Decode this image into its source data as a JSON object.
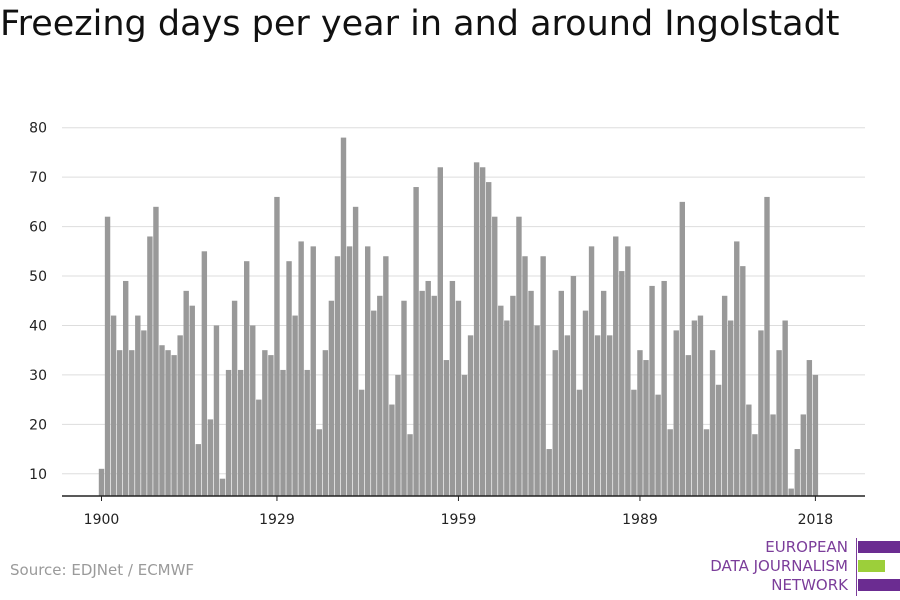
{
  "title": "Freezing days per year in and around Ingolstadt",
  "source": "Source: EDJNet / ECMWF",
  "logo": {
    "lines": [
      "EUROPEAN",
      "DATA JOURNALISM",
      "NETWORK"
    ],
    "colors": [
      "#6b2c91",
      "#9ccf3a",
      "#6b2c91"
    ]
  },
  "colors": {
    "bar": "#999999",
    "grid": "#dddddd",
    "axis": "#222222"
  },
  "chart_data": {
    "type": "bar",
    "title": "Freezing days per year in and around Ingolstadt",
    "xlabel": "",
    "ylabel": "",
    "x": [
      1900,
      1901,
      1902,
      1903,
      1904,
      1905,
      1906,
      1907,
      1908,
      1909,
      1910,
      1911,
      1912,
      1913,
      1914,
      1915,
      1916,
      1917,
      1918,
      1919,
      1920,
      1921,
      1922,
      1923,
      1924,
      1925,
      1926,
      1927,
      1928,
      1929,
      1930,
      1931,
      1932,
      1933,
      1934,
      1935,
      1936,
      1937,
      1938,
      1939,
      1940,
      1941,
      1942,
      1943,
      1944,
      1945,
      1946,
      1947,
      1948,
      1949,
      1950,
      1951,
      1952,
      1953,
      1954,
      1955,
      1956,
      1957,
      1958,
      1959,
      1960,
      1961,
      1962,
      1963,
      1964,
      1965,
      1966,
      1967,
      1968,
      1969,
      1970,
      1971,
      1972,
      1973,
      1974,
      1975,
      1976,
      1977,
      1978,
      1979,
      1980,
      1981,
      1982,
      1983,
      1984,
      1985,
      1986,
      1987,
      1988,
      1989,
      1990,
      1991,
      1992,
      1993,
      1994,
      1995,
      1996,
      1997,
      1998,
      1999,
      2000,
      2001,
      2002,
      2003,
      2004,
      2005,
      2006,
      2007,
      2008,
      2009,
      2010,
      2011,
      2012,
      2013,
      2014,
      2015,
      2016,
      2017,
      2018
    ],
    "values": [
      11,
      62,
      42,
      35,
      49,
      35,
      42,
      39,
      58,
      64,
      36,
      35,
      34,
      38,
      47,
      44,
      16,
      55,
      21,
      40,
      9,
      31,
      45,
      31,
      53,
      40,
      25,
      35,
      34,
      66,
      31,
      53,
      42,
      57,
      31,
      56,
      19,
      35,
      45,
      54,
      78,
      56,
      64,
      27,
      56,
      43,
      46,
      54,
      24,
      30,
      45,
      18,
      68,
      47,
      49,
      46,
      72,
      33,
      49,
      45,
      30,
      38,
      73,
      72,
      69,
      62,
      44,
      41,
      46,
      62,
      54,
      47,
      40,
      54,
      15,
      35,
      47,
      38,
      50,
      27,
      43,
      56,
      38,
      47,
      38,
      58,
      51,
      56,
      27,
      35,
      33,
      48,
      26,
      49,
      19,
      39,
      65,
      34,
      41,
      42,
      19,
      35,
      28,
      46,
      41,
      57,
      52,
      24,
      18,
      39,
      66,
      22,
      35,
      41,
      7,
      15,
      22,
      33,
      30
    ],
    "xticks": [
      "1900",
      "1929",
      "1959",
      "1989",
      "2018"
    ],
    "yticks": [
      10,
      20,
      30,
      40,
      50,
      60,
      70,
      80
    ],
    "ylim": [
      5.5,
      85
    ],
    "grid": true,
    "legend": "none"
  }
}
